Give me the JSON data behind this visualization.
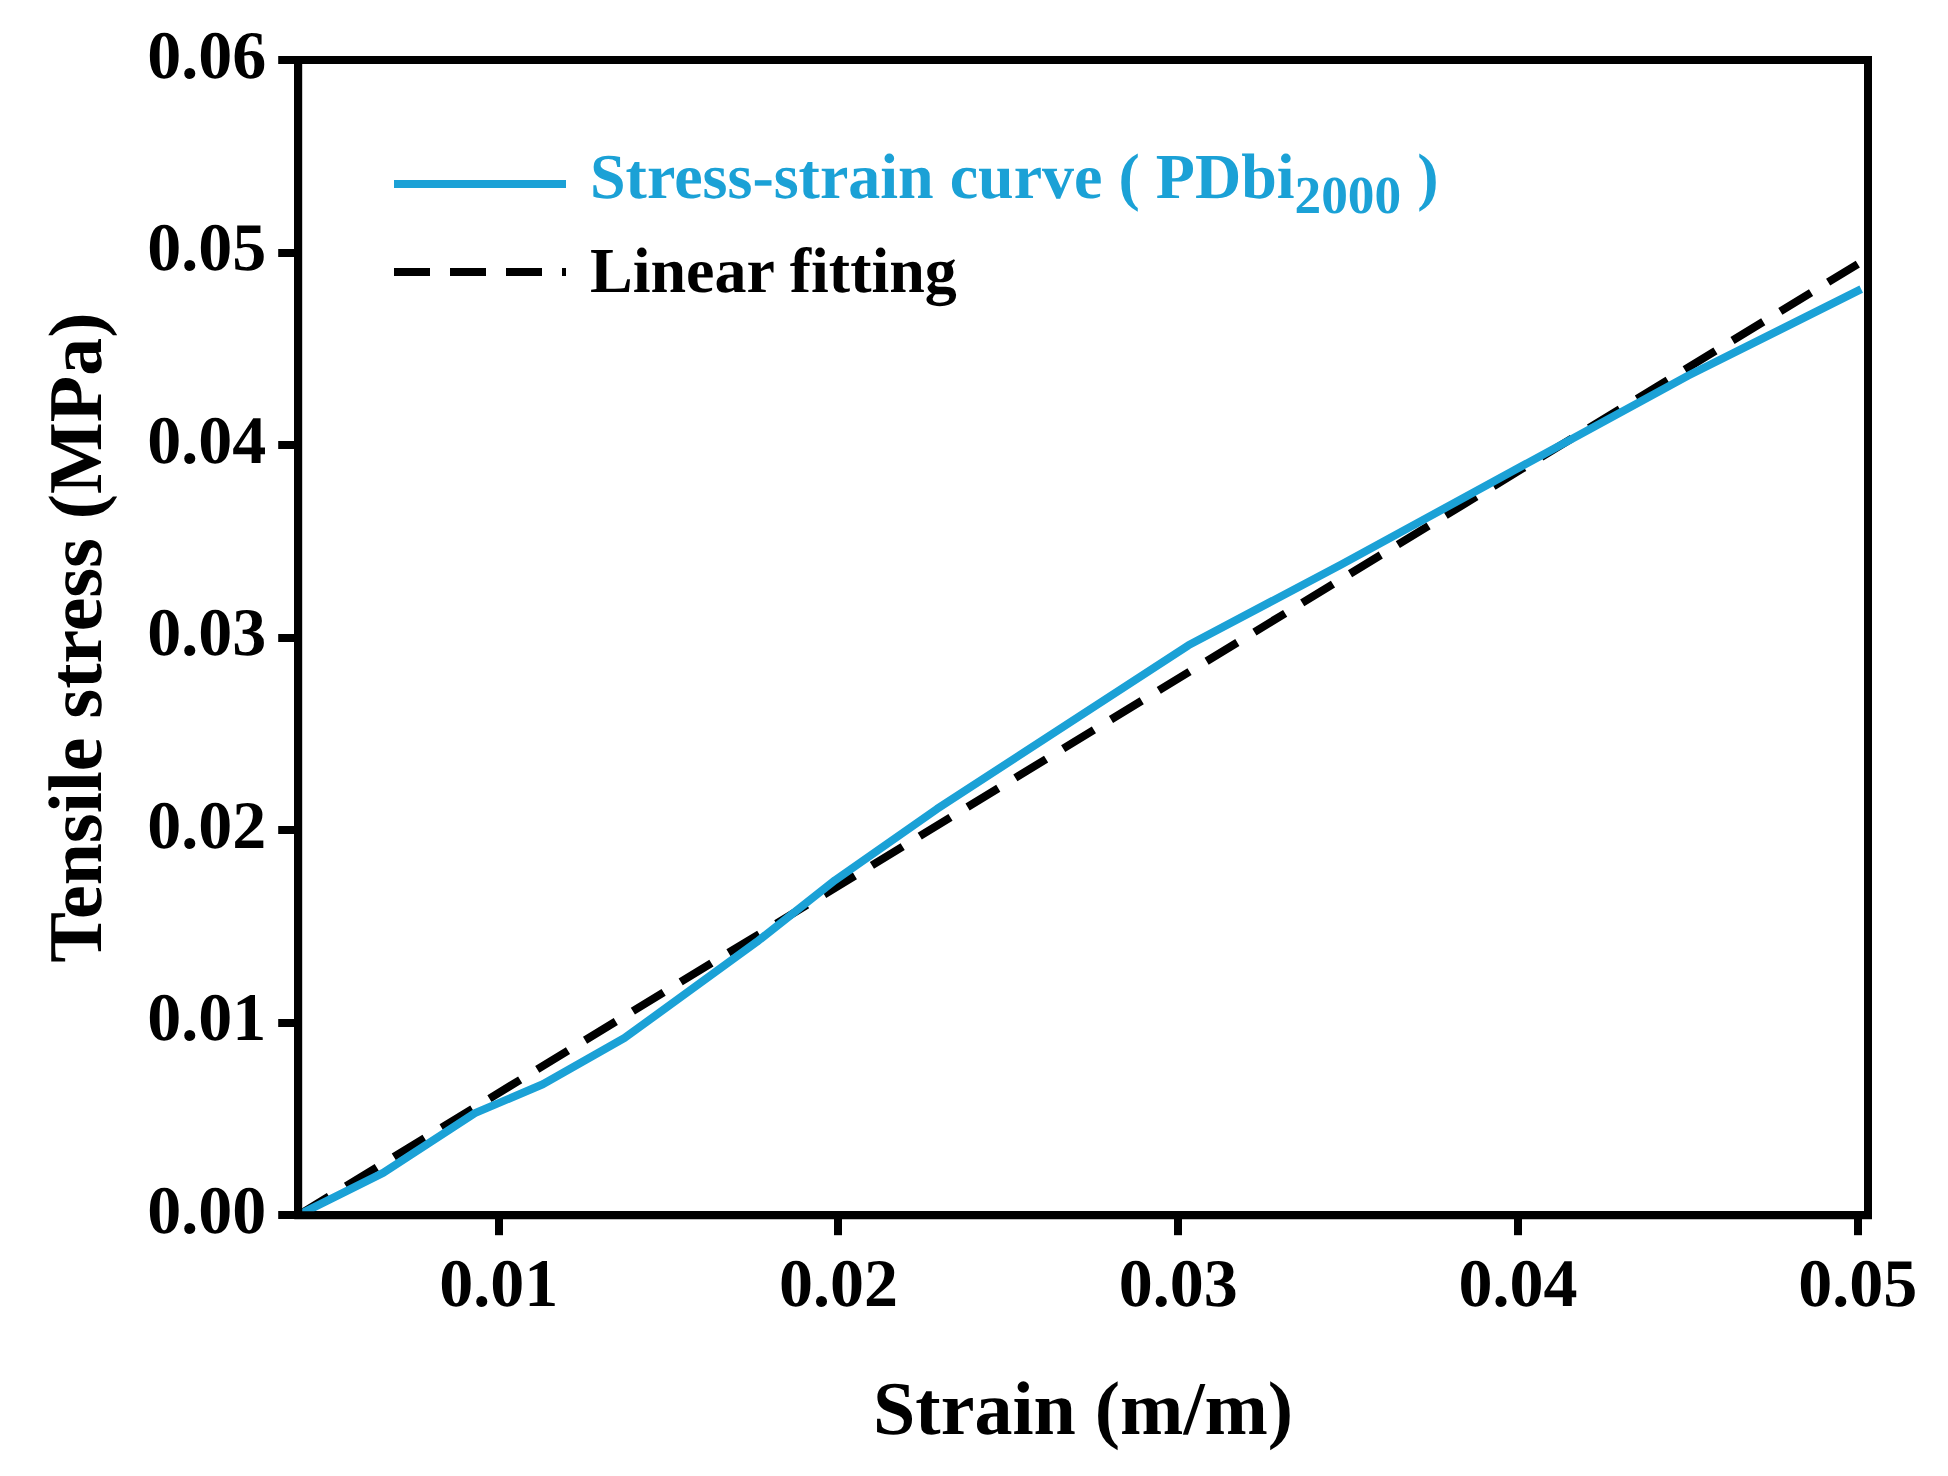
{
  "chart_data": {
    "type": "line",
    "xlabel": "Strain (m/m)",
    "ylabel": "Tensile stress (MPa)",
    "xlim": [
      0.0041,
      0.0503
    ],
    "xticks": [
      0.01,
      0.02,
      0.03,
      0.04,
      0.05
    ],
    "ylim": [
      0,
      0.06
    ],
    "yticks": [
      {
        "value": 0,
        "label": "0.00"
      },
      0.01,
      0.02,
      0.03,
      0.04,
      0.05,
      0.06
    ],
    "grid": false,
    "legend": "top left",
    "marker": "none",
    "series": [
      {
        "name": "Stress-strain curve ( PDbi$_{2000}$ )",
        "color": "#1ba1d6",
        "line_style": "solid",
        "x": [
          0.0041,
          0.0066,
          0.0093,
          0.0113,
          0.0137,
          0.0176,
          0.0199,
          0.0229,
          0.0303,
          0.0348,
          0.0399,
          0.045,
          0.0501
        ],
        "values": [
          0,
          0.0022,
          0.0053,
          0.0068,
          0.0092,
          0.0142,
          0.0174,
          0.0211,
          0.0296,
          0.0338,
          0.0387,
          0.0436,
          0.0481
        ]
      },
      {
        "name": "Linear fitting",
        "color": "#000000",
        "line_style": "dashed",
        "x": [
          0.0041,
          0.05
        ],
        "values": [
          0,
          0.0494
        ]
      }
    ]
  }
}
